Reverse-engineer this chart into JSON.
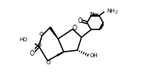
{
  "bg_color": "#ffffff",
  "line_color": "#000000",
  "lw": 1.1,
  "figsize": [
    1.9,
    1.02
  ],
  "dpi": 100,
  "xlim": [
    0.0,
    1.0
  ],
  "ylim": [
    0.0,
    1.0
  ]
}
